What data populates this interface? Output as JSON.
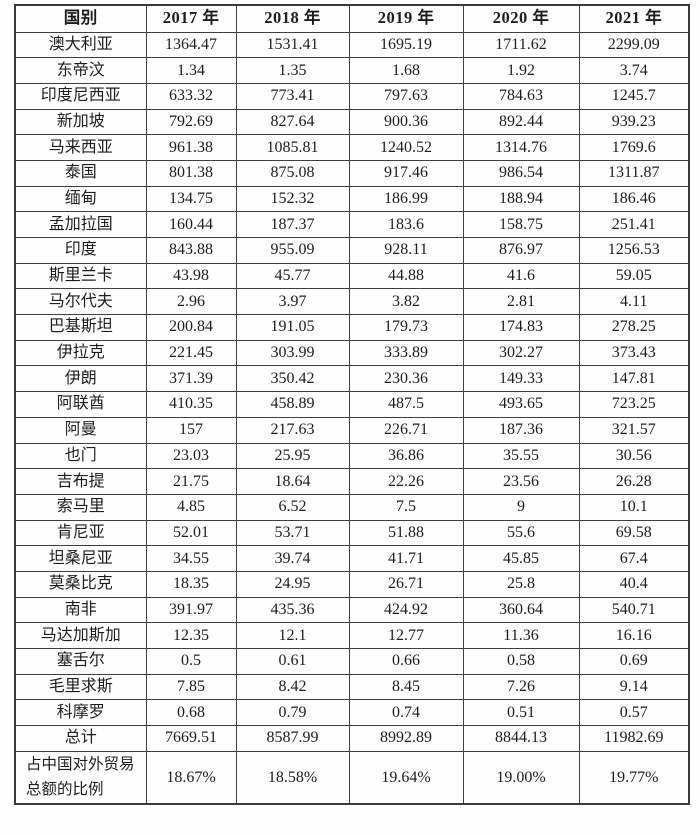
{
  "table": {
    "columns": [
      "国别",
      "2017 年",
      "2018 年",
      "2019 年",
      "2020 年",
      "2021 年"
    ],
    "rows": [
      {
        "label": "澳大利亚",
        "values": [
          "1364.47",
          "1531.41",
          "1695.19",
          "1711.62",
          "2299.09"
        ]
      },
      {
        "label": "东帝汶",
        "values": [
          "1.34",
          "1.35",
          "1.68",
          "1.92",
          "3.74"
        ]
      },
      {
        "label": "印度尼西亚",
        "values": [
          "633.32",
          "773.41",
          "797.63",
          "784.63",
          "1245.7"
        ]
      },
      {
        "label": "新加坡",
        "values": [
          "792.69",
          "827.64",
          "900.36",
          "892.44",
          "939.23"
        ]
      },
      {
        "label": "马来西亚",
        "values": [
          "961.38",
          "1085.81",
          "1240.52",
          "1314.76",
          "1769.6"
        ]
      },
      {
        "label": "泰国",
        "values": [
          "801.38",
          "875.08",
          "917.46",
          "986.54",
          "1311.87"
        ]
      },
      {
        "label": "缅甸",
        "values": [
          "134.75",
          "152.32",
          "186.99",
          "188.94",
          "186.46"
        ]
      },
      {
        "label": "孟加拉国",
        "values": [
          "160.44",
          "187.37",
          "183.6",
          "158.75",
          "251.41"
        ]
      },
      {
        "label": "印度",
        "values": [
          "843.88",
          "955.09",
          "928.11",
          "876.97",
          "1256.53"
        ]
      },
      {
        "label": "斯里兰卡",
        "values": [
          "43.98",
          "45.77",
          "44.88",
          "41.6",
          "59.05"
        ]
      },
      {
        "label": "马尔代夫",
        "values": [
          "2.96",
          "3.97",
          "3.82",
          "2.81",
          "4.11"
        ]
      },
      {
        "label": "巴基斯坦",
        "values": [
          "200.84",
          "191.05",
          "179.73",
          "174.83",
          "278.25"
        ]
      },
      {
        "label": "伊拉克",
        "values": [
          "221.45",
          "303.99",
          "333.89",
          "302.27",
          "373.43"
        ]
      },
      {
        "label": "伊朗",
        "values": [
          "371.39",
          "350.42",
          "230.36",
          "149.33",
          "147.81"
        ]
      },
      {
        "label": "阿联酋",
        "values": [
          "410.35",
          "458.89",
          "487.5",
          "493.65",
          "723.25"
        ]
      },
      {
        "label": "阿曼",
        "values": [
          "157",
          "217.63",
          "226.71",
          "187.36",
          "321.57"
        ]
      },
      {
        "label": "也门",
        "values": [
          "23.03",
          "25.95",
          "36.86",
          "35.55",
          "30.56"
        ]
      },
      {
        "label": "吉布提",
        "values": [
          "21.75",
          "18.64",
          "22.26",
          "23.56",
          "26.28"
        ]
      },
      {
        "label": "索马里",
        "values": [
          "4.85",
          "6.52",
          "7.5",
          "9",
          "10.1"
        ]
      },
      {
        "label": "肯尼亚",
        "values": [
          "52.01",
          "53.71",
          "51.88",
          "55.6",
          "69.58"
        ]
      },
      {
        "label": "坦桑尼亚",
        "values": [
          "34.55",
          "39.74",
          "41.71",
          "45.85",
          "67.4"
        ]
      },
      {
        "label": "莫桑比克",
        "values": [
          "18.35",
          "24.95",
          "26.71",
          "25.8",
          "40.4"
        ]
      },
      {
        "label": "南非",
        "values": [
          "391.97",
          "435.36",
          "424.92",
          "360.64",
          "540.71"
        ]
      },
      {
        "label": "马达加斯加",
        "values": [
          "12.35",
          "12.1",
          "12.77",
          "11.36",
          "16.16"
        ]
      },
      {
        "label": "塞舌尔",
        "values": [
          "0.5",
          "0.61",
          "0.66",
          "0.58",
          "0.69"
        ]
      },
      {
        "label": "毛里求斯",
        "values": [
          "7.85",
          "8.42",
          "8.45",
          "7.26",
          "9.14"
        ]
      },
      {
        "label": "科摩罗",
        "values": [
          "0.68",
          "0.79",
          "0.74",
          "0.51",
          "0.57"
        ]
      },
      {
        "label": "总计",
        "values": [
          "7669.51",
          "8587.99",
          "8992.89",
          "8844.13",
          "11982.69"
        ]
      },
      {
        "label": "占中国对外贸易总额的比例",
        "values": [
          "18.67%",
          "18.58%",
          "19.64%",
          "19.00%",
          "19.77%"
        ],
        "tall": true
      }
    ]
  },
  "colors": {
    "border": "#3f3f3f",
    "text": "#1d1d1d",
    "background": "#fdfdfd"
  }
}
